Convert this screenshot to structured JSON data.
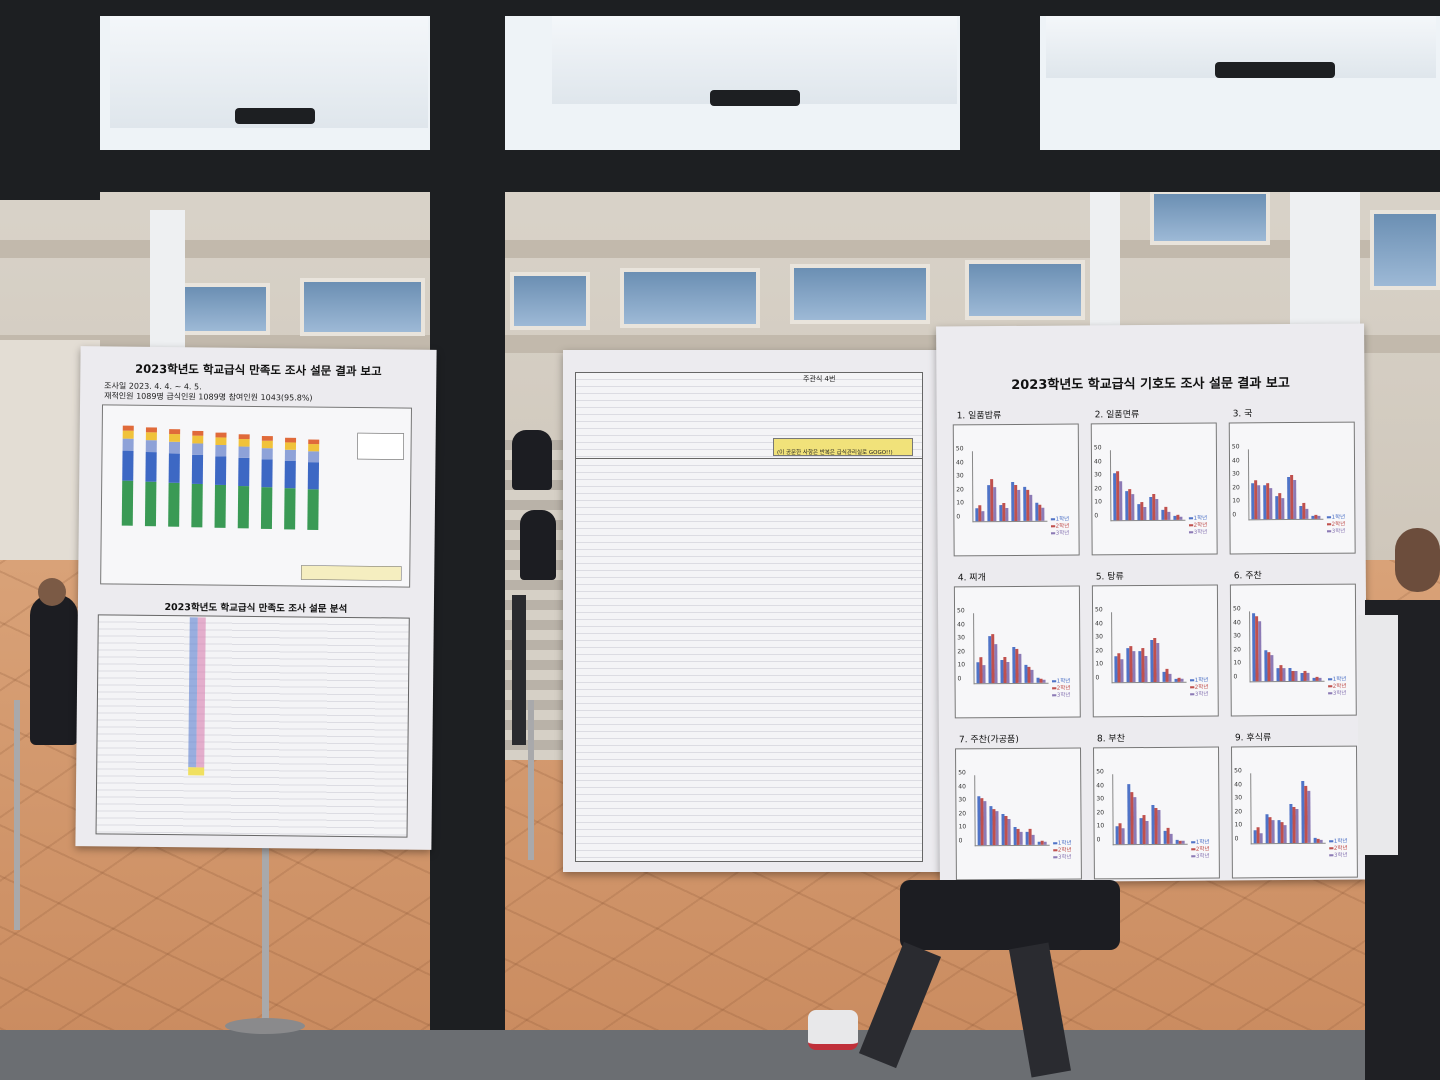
{
  "left_poster": {
    "title": "2023학년도 학교급식 만족도 조사 설문 결과 보고",
    "period": "조사일 2023. 4. 4. ~ 4. 5.",
    "counts": "재적인원 1089명   급식인원 1089명   참여인원 1043(95.8%)",
    "analysis_title": "2023학년도 학교급식 만족도 조사 설문 분석"
  },
  "middle_poster": {
    "menu_title": "주관식 4번",
    "notice": "(이 공문한 사항은 반복은 급식관리실로 GOGO!!)"
  },
  "right_poster": {
    "title": "2023학년도 학교급식 기호도 조사 설문 결과 보고",
    "charts": [
      {
        "label": "1. 일품밥류",
        "values": [
          [
            10,
            28,
            12,
            30,
            26,
            14
          ],
          [
            12,
            32,
            14,
            28,
            24,
            12
          ],
          [
            8,
            26,
            10,
            24,
            20,
            10
          ]
        ]
      },
      {
        "label": "2. 일품면류",
        "values": [
          [
            36,
            22,
            12,
            18,
            8,
            3
          ],
          [
            38,
            24,
            14,
            20,
            10,
            4
          ],
          [
            30,
            20,
            10,
            16,
            6,
            2
          ]
        ]
      },
      {
        "label": "3. 국",
        "values": [
          [
            28,
            26,
            18,
            32,
            10,
            2
          ],
          [
            30,
            28,
            20,
            34,
            12,
            3
          ],
          [
            26,
            24,
            16,
            30,
            8,
            2
          ]
        ]
      },
      {
        "label": "4. 찌개",
        "values": [
          [
            16,
            36,
            18,
            28,
            14,
            4
          ],
          [
            20,
            38,
            20,
            26,
            12,
            3
          ],
          [
            14,
            30,
            16,
            22,
            10,
            2
          ]
        ]
      },
      {
        "label": "5. 탕류",
        "values": [
          [
            20,
            26,
            24,
            32,
            8,
            2
          ],
          [
            22,
            28,
            26,
            34,
            10,
            3
          ],
          [
            18,
            24,
            20,
            30,
            6,
            2
          ]
        ]
      },
      {
        "label": "6. 주찬",
        "values": [
          [
            52,
            24,
            10,
            10,
            6,
            2
          ],
          [
            50,
            22,
            12,
            8,
            8,
            3
          ],
          [
            46,
            20,
            10,
            8,
            6,
            2
          ]
        ]
      },
      {
        "label": "7. 주찬(가공품)",
        "values": [
          [
            38,
            30,
            24,
            14,
            10,
            2
          ],
          [
            36,
            28,
            22,
            12,
            12,
            3
          ],
          [
            34,
            26,
            20,
            10,
            8,
            2
          ]
        ]
      },
      {
        "label": "8. 부찬",
        "values": [
          [
            14,
            46,
            20,
            30,
            10,
            3
          ],
          [
            16,
            40,
            22,
            28,
            12,
            2
          ],
          [
            12,
            36,
            18,
            26,
            8,
            2
          ]
        ]
      },
      {
        "label": "9. 후식류",
        "values": [
          [
            10,
            22,
            18,
            30,
            48,
            4
          ],
          [
            12,
            20,
            16,
            28,
            44,
            3
          ],
          [
            8,
            18,
            14,
            26,
            40,
            2
          ]
        ]
      }
    ],
    "legend": [
      "1학년",
      "2학년",
      "3학년"
    ],
    "axis_ticks": [
      "50",
      "40",
      "30",
      "20",
      "10",
      "0"
    ]
  }
}
